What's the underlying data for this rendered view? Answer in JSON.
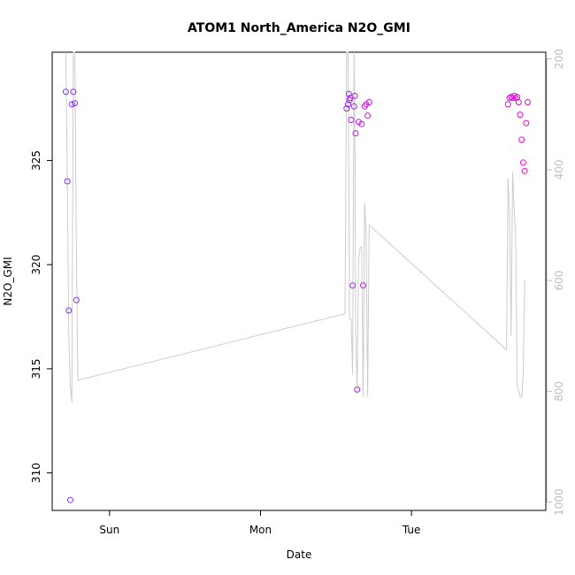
{
  "chart_data": {
    "type": "scatter",
    "title": "ATOM1 North_America N2O_GMI",
    "xlabel": "Date",
    "ylabel": "N2O_GMI",
    "x_ticks": [
      {
        "label": "Sun",
        "value": 1
      },
      {
        "label": "Mon",
        "value": 2
      },
      {
        "label": "Tue",
        "value": 3
      }
    ],
    "xlim": [
      0.62,
      3.89
    ],
    "ylim": [
      308.2,
      330.2
    ],
    "y_ticks": [
      310,
      315,
      320,
      325
    ],
    "y2lim": [
      1015,
      188
    ],
    "y2_ticks": [
      200,
      400,
      600,
      800,
      1000
    ],
    "grid": false,
    "colors": {
      "points_start": "#7733ff",
      "points_end": "#ff00cc",
      "line": "#cccccc",
      "right_axis": "#bdbdbd"
    },
    "series": [
      {
        "axis": "left",
        "marker": "open-circle",
        "points": [
          {
            "x": 0.71,
            "y": 328.3
          },
          {
            "x": 0.72,
            "y": 324.0
          },
          {
            "x": 0.73,
            "y": 317.8
          },
          {
            "x": 0.74,
            "y": 308.7
          },
          {
            "x": 0.75,
            "y": 327.7
          },
          {
            "x": 0.76,
            "y": 328.3
          },
          {
            "x": 0.77,
            "y": 327.75
          },
          {
            "x": 0.78,
            "y": 318.3
          },
          {
            "x": 2.57,
            "y": 327.5
          },
          {
            "x": 2.58,
            "y": 327.7
          },
          {
            "x": 2.585,
            "y": 328.2
          },
          {
            "x": 2.59,
            "y": 327.9
          },
          {
            "x": 2.595,
            "y": 328.0
          },
          {
            "x": 2.6,
            "y": 326.95
          },
          {
            "x": 2.61,
            "y": 319.0
          },
          {
            "x": 2.62,
            "y": 327.6
          },
          {
            "x": 2.625,
            "y": 328.1
          },
          {
            "x": 2.63,
            "y": 326.3
          },
          {
            "x": 2.64,
            "y": 314.0
          },
          {
            "x": 2.65,
            "y": 326.85
          },
          {
            "x": 2.67,
            "y": 326.75
          },
          {
            "x": 2.68,
            "y": 319.0
          },
          {
            "x": 2.69,
            "y": 327.6
          },
          {
            "x": 2.7,
            "y": 327.7
          },
          {
            "x": 2.71,
            "y": 327.15
          },
          {
            "x": 2.72,
            "y": 327.8
          },
          {
            "x": 3.64,
            "y": 327.7
          },
          {
            "x": 3.65,
            "y": 328.0
          },
          {
            "x": 3.66,
            "y": 328.05
          },
          {
            "x": 3.67,
            "y": 328.0
          },
          {
            "x": 3.68,
            "y": 328.1
          },
          {
            "x": 3.69,
            "y": 328.0
          },
          {
            "x": 3.7,
            "y": 328.05
          },
          {
            "x": 3.71,
            "y": 327.8
          },
          {
            "x": 3.72,
            "y": 327.2
          },
          {
            "x": 3.73,
            "y": 326.0
          },
          {
            "x": 3.74,
            "y": 324.9
          },
          {
            "x": 3.75,
            "y": 324.5
          },
          {
            "x": 3.76,
            "y": 326.8
          },
          {
            "x": 3.77,
            "y": 327.8
          }
        ]
      },
      {
        "axis": "right",
        "type": "line",
        "points": [
          {
            "x": 0.71,
            "y": 188
          },
          {
            "x": 0.72,
            "y": 420
          },
          {
            "x": 0.73,
            "y": 700
          },
          {
            "x": 0.74,
            "y": 790
          },
          {
            "x": 0.75,
            "y": 820
          },
          {
            "x": 0.76,
            "y": 188
          },
          {
            "x": 0.77,
            "y": 188
          },
          {
            "x": 0.78,
            "y": 530
          },
          {
            "x": 0.79,
            "y": 780
          },
          {
            "x": 2.56,
            "y": 660
          },
          {
            "x": 2.57,
            "y": 188
          },
          {
            "x": 2.58,
            "y": 188
          },
          {
            "x": 2.59,
            "y": 670
          },
          {
            "x": 2.6,
            "y": 670
          },
          {
            "x": 2.61,
            "y": 770
          },
          {
            "x": 2.62,
            "y": 188
          },
          {
            "x": 2.625,
            "y": 300
          },
          {
            "x": 2.63,
            "y": 680
          },
          {
            "x": 2.64,
            "y": 800
          },
          {
            "x": 2.65,
            "y": 560
          },
          {
            "x": 2.66,
            "y": 540
          },
          {
            "x": 2.67,
            "y": 540
          },
          {
            "x": 2.68,
            "y": 810
          },
          {
            "x": 2.69,
            "y": 460
          },
          {
            "x": 2.7,
            "y": 520
          },
          {
            "x": 2.71,
            "y": 810
          },
          {
            "x": 2.72,
            "y": 500
          },
          {
            "x": 3.63,
            "y": 725
          },
          {
            "x": 3.64,
            "y": 415
          },
          {
            "x": 3.65,
            "y": 480
          },
          {
            "x": 3.66,
            "y": 700
          },
          {
            "x": 3.67,
            "y": 405
          },
          {
            "x": 3.68,
            "y": 470
          },
          {
            "x": 3.69,
            "y": 520
          },
          {
            "x": 3.7,
            "y": 790
          },
          {
            "x": 3.72,
            "y": 810
          },
          {
            "x": 3.73,
            "y": 810
          },
          {
            "x": 3.74,
            "y": 770
          },
          {
            "x": 3.75,
            "y": 600
          }
        ]
      }
    ]
  }
}
